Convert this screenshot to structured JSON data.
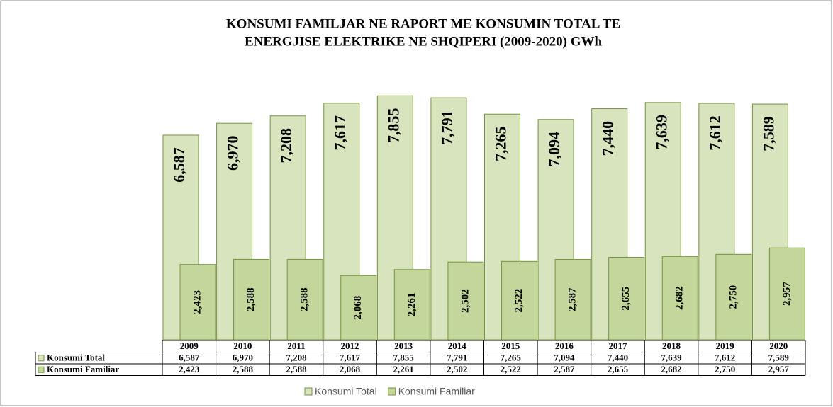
{
  "chart_data": {
    "type": "bar",
    "title": [
      "KONSUMI FAMILJAR NE RAPORT ME KONSUMIN TOTAL TE",
      "ENERGJISE ELEKTRIKE NE SHQIPERI (2009-2020) GWh"
    ],
    "categories": [
      "2009",
      "2010",
      "2011",
      "2012",
      "2013",
      "2014",
      "2015",
      "2016",
      "2017",
      "2018",
      "2019",
      "2020"
    ],
    "series": [
      {
        "name": "Konsumi Total",
        "color": "#d7e4bd",
        "values": [
          6587,
          6970,
          7208,
          7617,
          7855,
          7791,
          7265,
          7094,
          7440,
          7639,
          7612,
          7589
        ],
        "value_labels": [
          "6,587",
          "6,970",
          "7,208",
          "7,617",
          "7,855",
          "7,791",
          "7,265",
          "7,094",
          "7,440",
          "7,639",
          "7,612",
          "7,589"
        ]
      },
      {
        "name": "Konsumi Familiar",
        "color": "#c3d69b",
        "values": [
          2423,
          2588,
          2588,
          2068,
          2261,
          2502,
          2522,
          2587,
          2655,
          2682,
          2750,
          2957
        ],
        "value_labels": [
          "2,423",
          "2,588",
          "2,588",
          "2,068",
          "2,261",
          "2,502",
          "2,522",
          "2,587",
          "2,655",
          "2,682",
          "2,750",
          "2,957"
        ]
      }
    ],
    "ylim": [
      0,
      8000
    ]
  }
}
